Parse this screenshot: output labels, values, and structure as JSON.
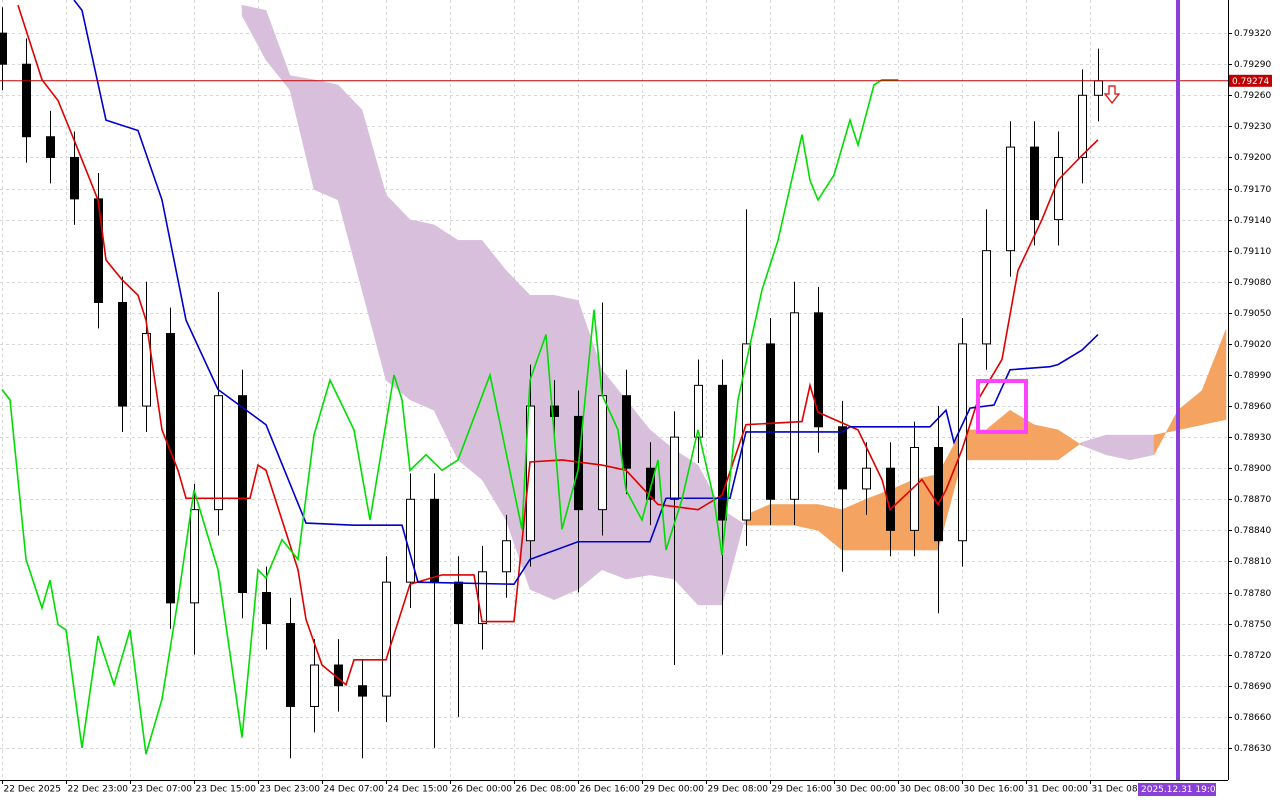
{
  "chart_data": {
    "type": "candlestick",
    "grid": true,
    "xlim": [
      -0.25,
      153.25
    ],
    "ylim": [
      0.78599,
      0.79352
    ],
    "yticks": [
      {
        "value": 0.7932,
        "label": "0.79320"
      },
      {
        "value": 0.7929,
        "label": "0.79290"
      },
      {
        "value": 0.7926,
        "label": "0.79260"
      },
      {
        "value": 0.7923,
        "label": "0.79230"
      },
      {
        "value": 0.792,
        "label": "0.79200"
      },
      {
        "value": 0.7917,
        "label": "0.79170"
      },
      {
        "value": 0.7914,
        "label": "0.79140"
      },
      {
        "value": 0.7911,
        "label": "0.79110"
      },
      {
        "value": 0.7908,
        "label": "0.79080"
      },
      {
        "value": 0.7905,
        "label": "0.79050"
      },
      {
        "value": 0.7902,
        "label": "0.79020"
      },
      {
        "value": 0.7899,
        "label": "0.78990"
      },
      {
        "value": 0.7896,
        "label": "0.78960"
      },
      {
        "value": 0.7893,
        "label": "0.78930"
      },
      {
        "value": 0.789,
        "label": "0.78900"
      },
      {
        "value": 0.7887,
        "label": "0.78870"
      },
      {
        "value": 0.7884,
        "label": "0.78840"
      },
      {
        "value": 0.7881,
        "label": "0.78810"
      },
      {
        "value": 0.7878,
        "label": "0.78780"
      },
      {
        "value": 0.7875,
        "label": "0.78750"
      },
      {
        "value": 0.7872,
        "label": "0.78720"
      },
      {
        "value": 0.7869,
        "label": "0.78690"
      },
      {
        "value": 0.7866,
        "label": "0.78660"
      },
      {
        "value": 0.7863,
        "label": "0.78630"
      }
    ],
    "xticks": [
      {
        "value": 0,
        "label": "22 Dec 2025"
      },
      {
        "value": 8,
        "label": "22 Dec 23:00"
      },
      {
        "value": 16,
        "label": "23 Dec 07:00"
      },
      {
        "value": 24,
        "label": "23 Dec 15:00"
      },
      {
        "value": 32,
        "label": "23 Dec 23:00"
      },
      {
        "value": 40,
        "label": "24 Dec 07:00"
      },
      {
        "value": 48,
        "label": "24 Dec 15:00"
      },
      {
        "value": 56,
        "label": "26 Dec 00:00"
      },
      {
        "value": 64,
        "label": "26 Dec 08:00"
      },
      {
        "value": 72,
        "label": "26 Dec 16:00"
      },
      {
        "value": 80,
        "label": "29 Dec 00:00"
      },
      {
        "value": 88,
        "label": "29 Dec 08:00"
      },
      {
        "value": 96,
        "label": "29 Dec 16:00"
      },
      {
        "value": 104,
        "label": "30 Dec 00:00"
      },
      {
        "value": 112,
        "label": "30 Dec 08:00"
      },
      {
        "value": 120,
        "label": "30 Dec 16:00"
      },
      {
        "value": 128,
        "label": "31 Dec 00:00"
      },
      {
        "value": 136,
        "label": "31 Dec 08:00"
      }
    ],
    "candles": {
      "up_color": "#ffffff",
      "down_color": "#000000",
      "x": [
        0,
        3,
        6,
        9,
        12,
        15,
        18,
        21,
        24,
        27,
        30,
        33,
        36,
        39,
        42,
        45,
        48,
        51,
        54,
        57,
        60,
        63,
        66,
        69,
        72,
        75,
        78,
        81,
        84,
        87,
        90,
        93,
        96,
        99,
        102,
        105,
        108,
        111,
        114,
        117,
        120,
        123,
        126,
        129,
        132,
        135,
        137
      ],
      "open": [
        0.7932,
        0.7929,
        0.7922,
        0.792,
        0.7916,
        0.7906,
        0.7896,
        0.7903,
        0.7877,
        0.7886,
        0.7897,
        0.7878,
        0.7875,
        0.7867,
        0.7871,
        0.7869,
        0.7868,
        0.7879,
        0.7887,
        0.7879,
        0.7875,
        0.788,
        0.7883,
        0.7896,
        0.7895,
        0.7886,
        0.7897,
        0.789,
        0.7887,
        0.7893,
        0.7898,
        0.7885,
        0.7902,
        0.7887,
        0.7905,
        0.7894,
        0.7888,
        0.789,
        0.7884,
        0.7892,
        0.7883,
        0.7902,
        0.7911,
        0.7921,
        0.7914,
        0.792,
        0.7926
      ],
      "high": [
        0.79345,
        0.79315,
        0.79245,
        0.79225,
        0.79185,
        0.79085,
        0.7908,
        0.79055,
        0.78885,
        0.7907,
        0.78995,
        0.78805,
        0.78775,
        0.78735,
        0.78735,
        0.78715,
        0.78815,
        0.78895,
        0.78895,
        0.78815,
        0.78825,
        0.78855,
        0.79,
        0.78985,
        0.78975,
        0.7906,
        0.78995,
        0.78925,
        0.78955,
        0.79005,
        0.79005,
        0.7915,
        0.79045,
        0.7908,
        0.79075,
        0.78965,
        0.78925,
        0.78925,
        0.78945,
        0.7896,
        0.79045,
        0.7915,
        0.79235,
        0.79235,
        0.79225,
        0.79285,
        0.79305
      ],
      "low": [
        0.79265,
        0.79195,
        0.79175,
        0.79135,
        0.79035,
        0.78935,
        0.78935,
        0.78745,
        0.7872,
        0.78835,
        0.78755,
        0.78725,
        0.7862,
        0.78645,
        0.78665,
        0.7862,
        0.78655,
        0.78765,
        0.7863,
        0.7866,
        0.78725,
        0.78775,
        0.78805,
        0.78925,
        0.7878,
        0.78835,
        0.78875,
        0.78845,
        0.7871,
        0.78905,
        0.7872,
        0.78825,
        0.78845,
        0.78845,
        0.78915,
        0.788,
        0.78855,
        0.78815,
        0.78815,
        0.7876,
        0.78805,
        0.78995,
        0.79085,
        0.79115,
        0.79115,
        0.79175,
        0.79235
      ],
      "close": [
        0.7929,
        0.7922,
        0.792,
        0.7916,
        0.7906,
        0.7896,
        0.7903,
        0.7877,
        0.7886,
        0.7897,
        0.7878,
        0.7875,
        0.7867,
        0.7871,
        0.7869,
        0.7868,
        0.7879,
        0.7887,
        0.7879,
        0.7875,
        0.788,
        0.7883,
        0.7896,
        0.7895,
        0.7886,
        0.7897,
        0.789,
        0.7887,
        0.7893,
        0.7898,
        0.7885,
        0.7902,
        0.7887,
        0.7905,
        0.7894,
        0.7888,
        0.789,
        0.7884,
        0.7892,
        0.7883,
        0.7902,
        0.7911,
        0.7921,
        0.7914,
        0.792,
        0.7926,
        0.79274
      ]
    },
    "cloud": {
      "bull_color": "#f4a460",
      "bear_color": "#d8c0dc",
      "x": [
        30,
        33,
        36,
        39,
        42,
        45,
        48,
        51,
        54,
        57,
        60,
        63,
        66,
        69,
        72,
        75,
        78,
        81,
        84,
        87,
        90,
        93,
        96,
        99,
        102,
        105,
        108,
        111,
        114,
        117,
        120,
        123,
        126,
        129,
        132,
        135,
        138,
        141,
        144,
        147,
        150,
        153
      ],
      "span_a": [
        0.79337,
        0.79294,
        0.79265,
        0.79169,
        0.79159,
        0.79072,
        0.78985,
        0.78966,
        0.78956,
        0.78908,
        0.78889,
        0.7885,
        0.78783,
        0.78773,
        0.78783,
        0.78802,
        0.78793,
        0.78797,
        0.78793,
        0.78768,
        0.78768,
        0.78855,
        0.78865,
        0.78865,
        0.78865,
        0.7886,
        0.7887,
        0.78879,
        0.78889,
        0.78894,
        0.78937,
        0.78937,
        0.78956,
        0.78942,
        0.78937,
        0.78922,
        0.78913,
        0.78908,
        0.78913,
        0.78956,
        0.78975,
        0.79034
      ],
      "span_b": [
        0.79347,
        0.79342,
        0.79279,
        0.79275,
        0.7927,
        0.79246,
        0.79164,
        0.7914,
        0.79135,
        0.7912,
        0.7912,
        0.79091,
        0.79067,
        0.79067,
        0.79062,
        0.78995,
        0.78966,
        0.78937,
        0.78918,
        0.78903,
        0.7886,
        0.78845,
        0.78845,
        0.78845,
        0.7884,
        0.78821,
        0.78821,
        0.78821,
        0.78821,
        0.78821,
        0.78908,
        0.78908,
        0.78908,
        0.78908,
        0.78908,
        0.78925,
        0.78932,
        0.78932,
        0.78932,
        0.78937,
        0.78942,
        0.78947
      ]
    },
    "lines": [
      {
        "color": "#e00000",
        "x": [
          2,
          5,
          7,
          9,
          12,
          13,
          15,
          17,
          18,
          20,
          22,
          23,
          31,
          32,
          33,
          35,
          37,
          38,
          40,
          43,
          44,
          48,
          51,
          55,
          59,
          60,
          64,
          66,
          70,
          75,
          78,
          82,
          87,
          90,
          93,
          100,
          101,
          102,
          107,
          110,
          111,
          115,
          117,
          118,
          120,
          122,
          125,
          127,
          130,
          132,
          135,
          137
        ],
        "values": [
          0.79347,
          0.79275,
          0.79255,
          0.79217,
          0.79159,
          0.79101,
          0.79082,
          0.79067,
          0.79043,
          0.78937,
          0.78898,
          0.78871,
          0.78871,
          0.78903,
          0.78898,
          0.7885,
          0.78802,
          0.78754,
          0.7871,
          0.78691,
          0.78715,
          0.78715,
          0.78788,
          0.78797,
          0.78797,
          0.78752,
          0.78752,
          0.78906,
          0.78908,
          0.78903,
          0.78898,
          0.78865,
          0.7886,
          0.78874,
          0.78942,
          0.78945,
          0.7898,
          0.78954,
          0.78937,
          0.78889,
          0.7886,
          0.78889,
          0.78865,
          0.78879,
          0.78918,
          0.78966,
          0.79005,
          0.79091,
          0.7914,
          0.79178,
          0.79202,
          0.79217
        ]
      },
      {
        "color": "#0000cc",
        "x": [
          9,
          10,
          13,
          17,
          20,
          23,
          27,
          33,
          38,
          44,
          50,
          52,
          64,
          66,
          72,
          81,
          83,
          91,
          93,
          105,
          106,
          116,
          118,
          119,
          121,
          124,
          126,
          131,
          132,
          135,
          137
        ],
        "values": [
          0.79352,
          0.79342,
          0.79236,
          0.79226,
          0.79159,
          0.79043,
          0.78976,
          0.78942,
          0.78847,
          0.78845,
          0.78845,
          0.7879,
          0.78788,
          0.78812,
          0.78829,
          0.78829,
          0.78871,
          0.78871,
          0.78935,
          0.78935,
          0.7894,
          0.7894,
          0.78956,
          0.78925,
          0.78958,
          0.78961,
          0.78995,
          0.78998,
          0.79,
          0.79014,
          0.79029
        ]
      },
      {
        "color": "#00dd00",
        "x": [
          0,
          1,
          3,
          5,
          6,
          7,
          8,
          10,
          12,
          14,
          16,
          18,
          20,
          22,
          24,
          27,
          30,
          32,
          33,
          35,
          37,
          39,
          41,
          44,
          46,
          49,
          50,
          51,
          53,
          55,
          57,
          61,
          65,
          66,
          68,
          70,
          72,
          74,
          75,
          77,
          78,
          80,
          82,
          83,
          85,
          87,
          89,
          90,
          92,
          95,
          97,
          100,
          101,
          102,
          104,
          106,
          107,
          109,
          110,
          112
        ],
        "values": [
          0.78976,
          0.78966,
          0.78812,
          0.78765,
          0.78792,
          0.78749,
          0.78744,
          0.7863,
          0.78738,
          0.78691,
          0.78744,
          0.78624,
          0.78677,
          0.78773,
          0.78879,
          0.78802,
          0.7864,
          0.78802,
          0.78794,
          0.78831,
          0.78812,
          0.78932,
          0.78985,
          0.78937,
          0.7885,
          0.7899,
          0.78966,
          0.78898,
          0.78913,
          0.78898,
          0.78908,
          0.7899,
          0.78841,
          0.78985,
          0.79029,
          0.78841,
          0.78898,
          0.79053,
          0.78971,
          0.78937,
          0.78879,
          0.7885,
          0.78908,
          0.78821,
          0.7887,
          0.78937,
          0.7887,
          0.78816,
          0.78966,
          0.79072,
          0.7912,
          0.79222,
          0.79178,
          0.79159,
          0.79183,
          0.79236,
          0.79212,
          0.7927,
          0.79275,
          0.79275
        ]
      }
    ],
    "price_line": 0.79274,
    "price_line_color": "#c00000",
    "vline": {
      "value": 147,
      "label": "2025.12.31 19:00",
      "color": "#8b3fd9"
    }
  }
}
